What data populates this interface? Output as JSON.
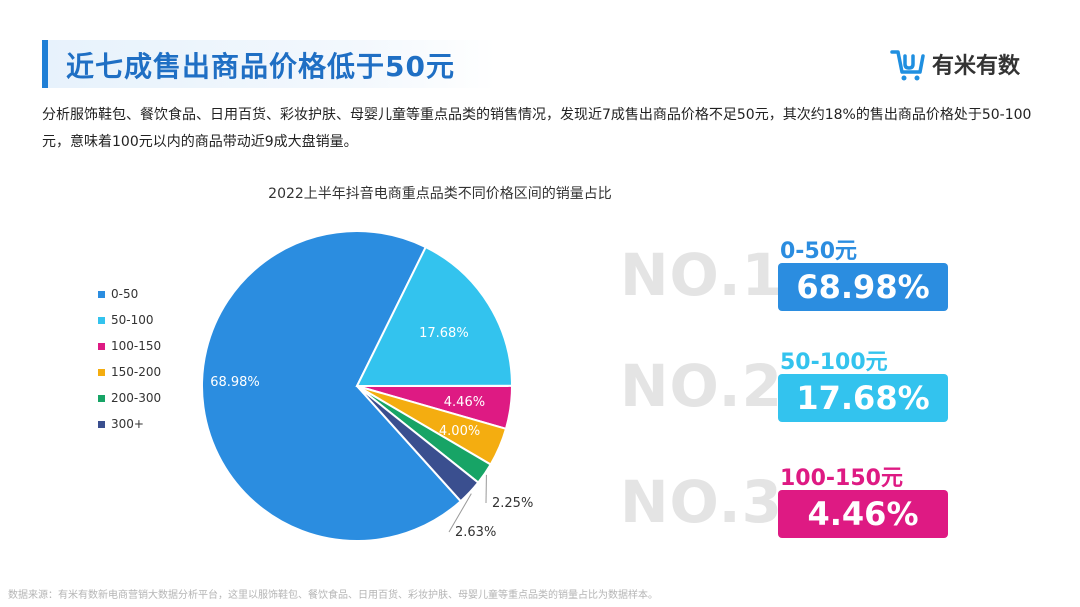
{
  "header": {
    "title": "近七成售出商品价格低于50元",
    "logo_text": "有米有数",
    "intro": "分析服饰鞋包、餐饮食品、日用百货、彩妆护肤、母婴儿童等重点品类的销售情况，发现近7成售出商品价格不足50元，其次约18%的售出商品价格处于50-100元，意味着100元以内的商品带动近9成大盘销量。"
  },
  "chart_data": {
    "type": "pie",
    "title": "2022上半年抖音电商重点品类不同价格区间的销量占比",
    "legend_position": "left",
    "categories": [
      "0-50",
      "50-100",
      "100-150",
      "150-200",
      "200-300",
      "300+"
    ],
    "values": [
      68.98,
      17.68,
      4.46,
      4.0,
      2.25,
      2.63
    ],
    "labels": [
      "68.98%",
      "17.68%",
      "4.46%",
      "4.00%",
      "2.25%",
      "2.63%"
    ],
    "colors": [
      "#2b8de0",
      "#33c3ee",
      "#de1a83",
      "#f4ad10",
      "#17a466",
      "#3a4f8f"
    ]
  },
  "ranking": [
    {
      "no": "NO.1",
      "range": "0-50元",
      "value": "68.98%",
      "color": "#2b8de0"
    },
    {
      "no": "NO.2",
      "range": "50-100元",
      "value": "17.68%",
      "color": "#33c3ee"
    },
    {
      "no": "NO.3",
      "range": "100-150元",
      "value": "4.46%",
      "color": "#de1a83"
    }
  ],
  "footer": {
    "source": "数据来源：有米有数新电商营销大数据分析平台，这里以服饰鞋包、餐饮食品、日用百货、彩妆护肤、母婴儿童等重点品类的销量占比为数据样本。"
  }
}
